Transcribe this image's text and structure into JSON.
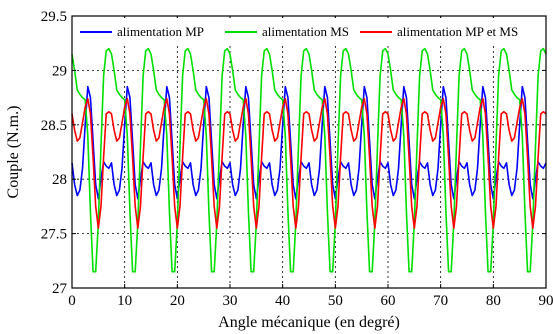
{
  "chart_data": {
    "type": "line",
    "title": "",
    "xlabel": "Angle mécanique (en degré)",
    "ylabel": "Couple (N.m.)",
    "xlim": [
      0,
      90
    ],
    "ylim": [
      27,
      29.5
    ],
    "x_ticks": [
      0,
      10,
      20,
      30,
      40,
      50,
      60,
      70,
      80,
      90
    ],
    "x_tick_labels": [
      "0",
      "10",
      "20",
      "30",
      "40",
      "50",
      "60",
      "70",
      "80",
      "90"
    ],
    "y_ticks": [
      27,
      27.5,
      28,
      28.5,
      29,
      29.5
    ],
    "y_tick_labels": [
      "27",
      "27.5",
      "28",
      "28.5",
      "29",
      "29.5"
    ],
    "grid": true,
    "legend_position": "top",
    "period_deg": 7.5,
    "series": [
      {
        "name": "alimentation MP",
        "color": "#0000ff",
        "x": [
          0,
          0.5,
          1,
          1.5,
          2,
          2.5,
          3,
          3.5,
          4,
          4.5,
          5,
          5.5,
          6,
          6.5,
          7,
          7.5
        ],
        "y": [
          28.15,
          27.95,
          27.85,
          27.9,
          28.1,
          28.5,
          28.85,
          28.75,
          28.35,
          27.95,
          27.82,
          28.0,
          28.16,
          28.12,
          28.1,
          28.15
        ]
      },
      {
        "name": "alimentation MS",
        "color": "#00e000",
        "x": [
          0,
          0.5,
          1,
          1.5,
          2,
          2.5,
          3,
          3.5,
          4,
          4.5,
          5,
          5.5,
          6,
          6.5,
          7,
          7.5
        ],
        "y": [
          29.15,
          29.0,
          28.82,
          28.78,
          28.75,
          28.73,
          28.4,
          27.7,
          27.15,
          27.15,
          27.6,
          28.3,
          28.95,
          29.18,
          29.2,
          29.15
        ]
      },
      {
        "name": "alimentation MP et MS",
        "color": "#ff0000",
        "x": [
          0,
          0.5,
          1,
          1.5,
          2,
          2.5,
          3,
          3.5,
          4,
          4.5,
          5,
          5.5,
          6,
          6.5,
          7,
          7.5
        ],
        "y": [
          28.6,
          28.45,
          28.35,
          28.38,
          28.52,
          28.66,
          28.74,
          28.6,
          28.2,
          27.75,
          27.55,
          27.75,
          28.2,
          28.6,
          28.62,
          28.6
        ]
      }
    ]
  }
}
